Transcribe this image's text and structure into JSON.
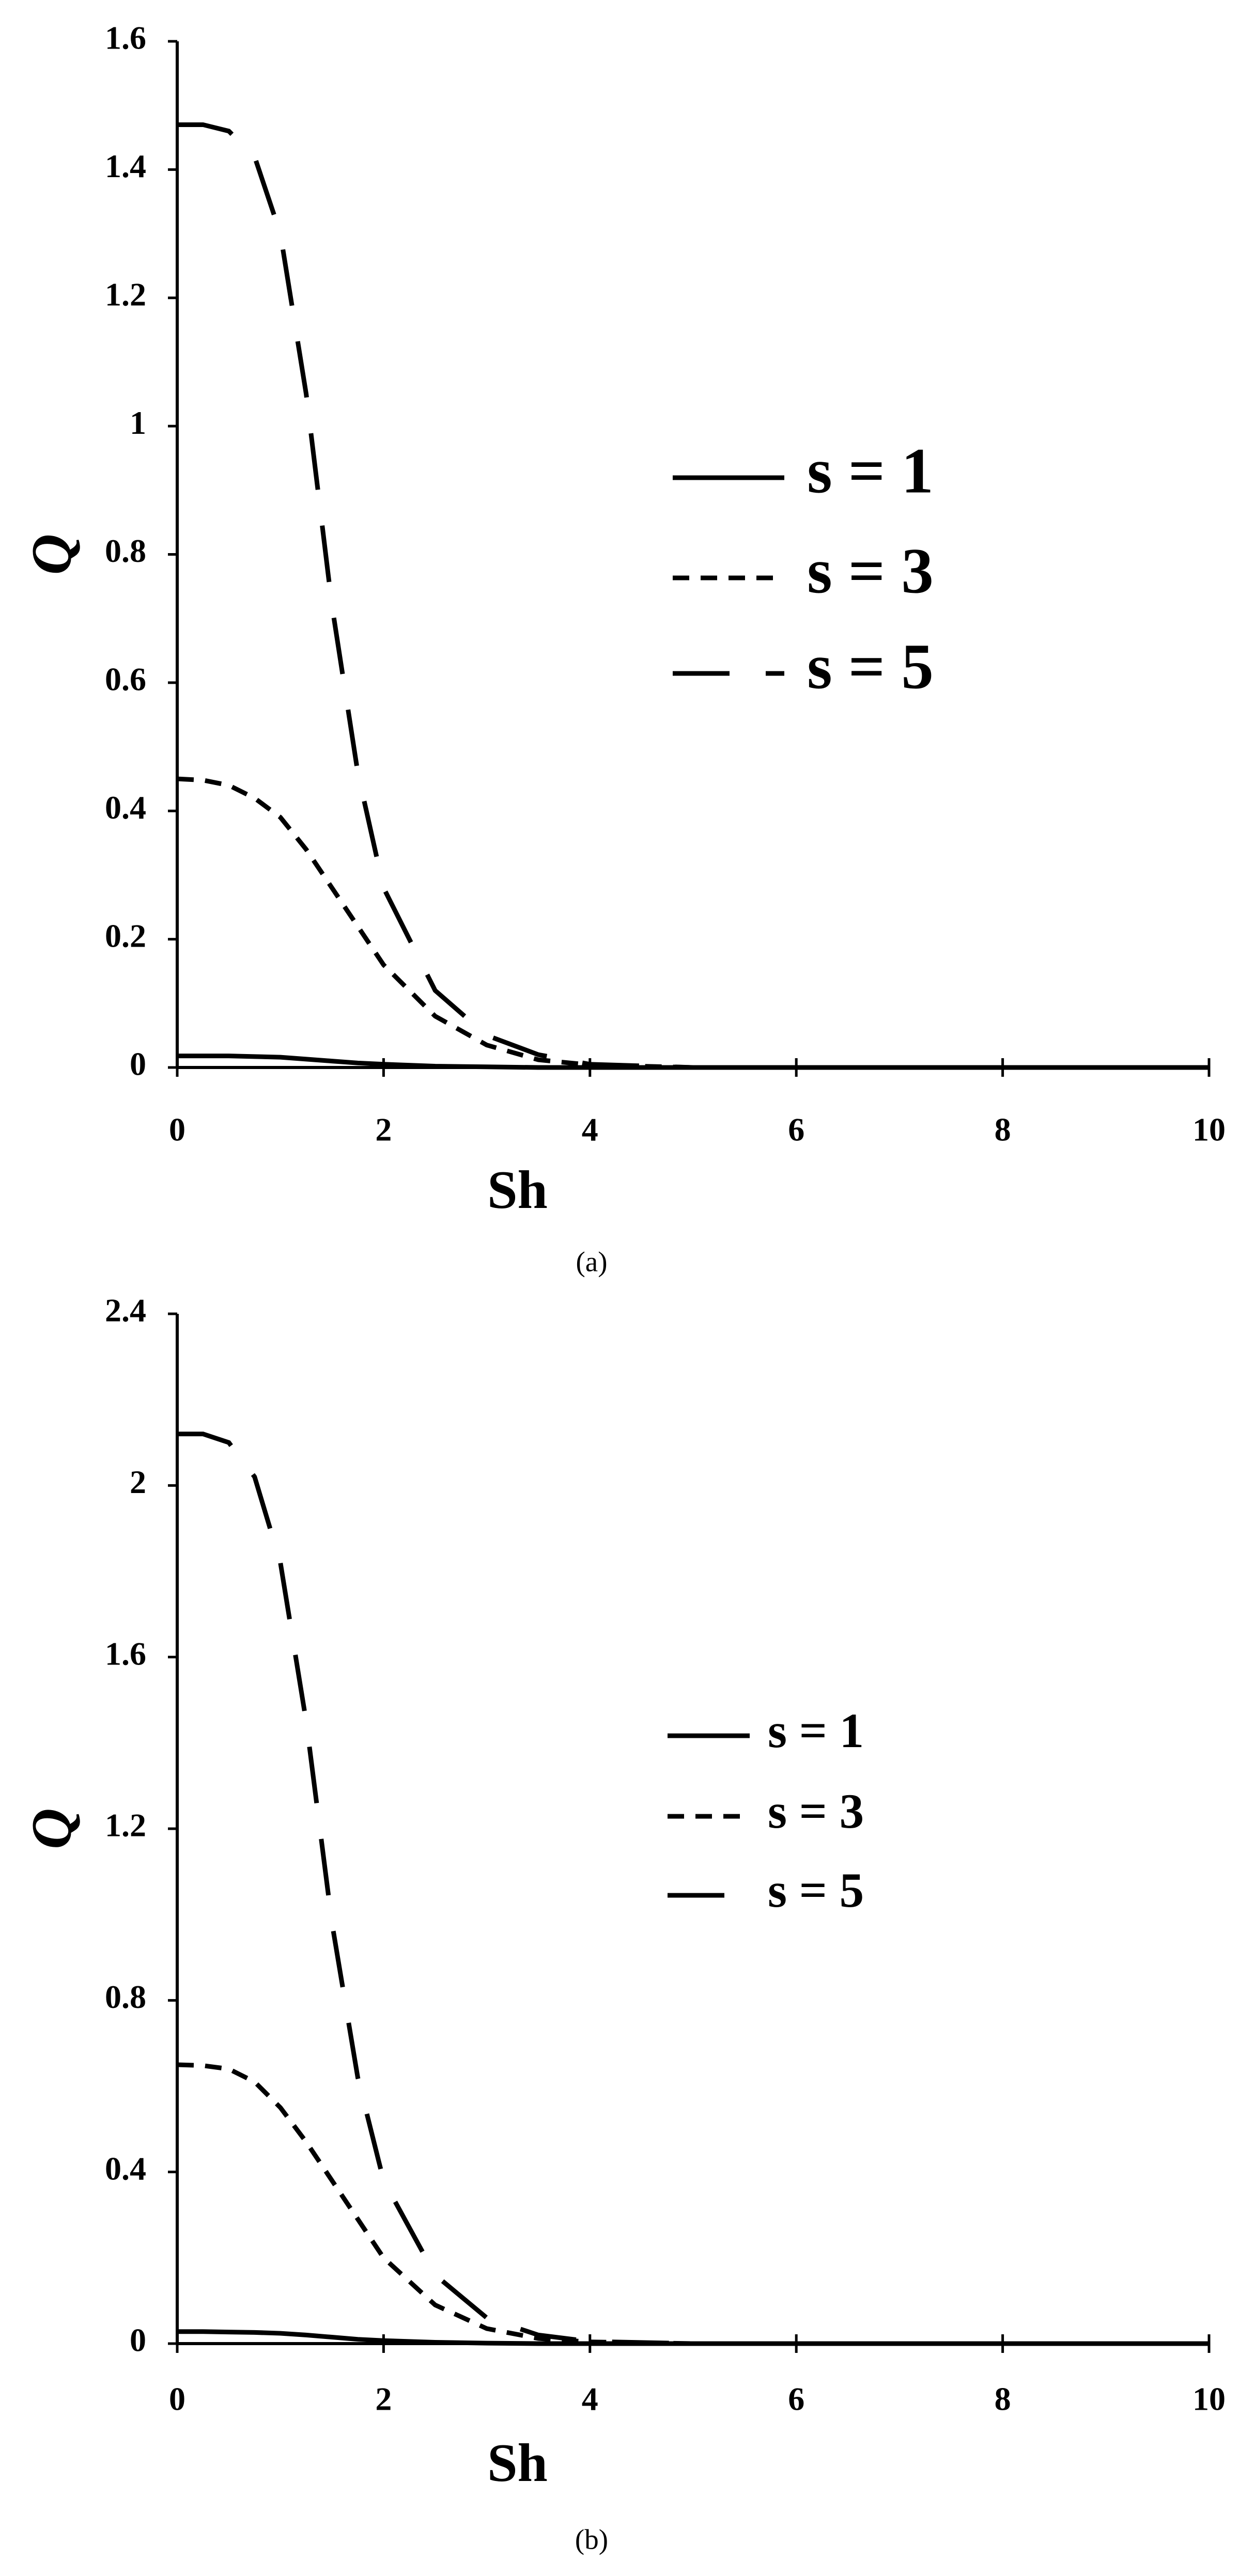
{
  "chart_data": [
    {
      "type": "line",
      "caption": "(a)",
      "xlabel": "Sh",
      "ylabel": "Q",
      "x": [
        0,
        0.25,
        0.5,
        0.75,
        1,
        1.25,
        1.5,
        1.75,
        2,
        2.5,
        3,
        3.5,
        4,
        5,
        6,
        7,
        8,
        9,
        10
      ],
      "xlim": [
        0,
        10
      ],
      "xticks": [
        0,
        2,
        4,
        6,
        8,
        10
      ],
      "ylim": [
        0,
        1.6
      ],
      "yticks": [
        0,
        0.2,
        0.4,
        0.6,
        0.8,
        1,
        1.2,
        1.4,
        1.6
      ],
      "series": [
        {
          "name": "s = 1",
          "color": "#000000",
          "style": "solid",
          "values": [
            0.018,
            0.018,
            0.018,
            0.017,
            0.016,
            0.013,
            0.01,
            0.007,
            0.005,
            0.002,
            0.001,
            0,
            0,
            0,
            0,
            0,
            0,
            0,
            0
          ]
        },
        {
          "name": "s = 3",
          "color": "#000000",
          "style": "dotted",
          "values": [
            0.45,
            0.448,
            0.44,
            0.42,
            0.39,
            0.34,
            0.28,
            0.22,
            0.16,
            0.08,
            0.035,
            0.012,
            0.004,
            0,
            0,
            0,
            0,
            0,
            0
          ]
        },
        {
          "name": "s = 5",
          "color": "#000000",
          "style": "dashed",
          "values": [
            1.47,
            1.47,
            1.46,
            1.42,
            1.3,
            1.05,
            0.72,
            0.46,
            0.28,
            0.12,
            0.05,
            0.02,
            0.005,
            0,
            0,
            0,
            0,
            0,
            0
          ]
        }
      ]
    },
    {
      "type": "line",
      "caption": "(b)",
      "xlabel": "Sh",
      "ylabel": "Q",
      "x": [
        0,
        0.25,
        0.5,
        0.75,
        1,
        1.25,
        1.5,
        1.75,
        2,
        2.5,
        3,
        3.5,
        4,
        5,
        6,
        7,
        8,
        9,
        10
      ],
      "xlim": [
        0,
        10
      ],
      "xticks": [
        0,
        2,
        4,
        6,
        8,
        10
      ],
      "ylim": [
        0,
        2.4
      ],
      "yticks": [
        0,
        0.4,
        0.8,
        1.2,
        1.6,
        2,
        2.4
      ],
      "series": [
        {
          "name": "s = 1",
          "color": "#000000",
          "style": "solid",
          "values": [
            0.028,
            0.028,
            0.027,
            0.026,
            0.024,
            0.02,
            0.015,
            0.01,
            0.007,
            0.003,
            0.001,
            0,
            0,
            0,
            0,
            0,
            0,
            0,
            0
          ]
        },
        {
          "name": "s = 3",
          "color": "#000000",
          "style": "dotted",
          "values": [
            0.65,
            0.648,
            0.64,
            0.61,
            0.55,
            0.47,
            0.38,
            0.29,
            0.2,
            0.09,
            0.035,
            0.012,
            0.004,
            0,
            0,
            0,
            0,
            0,
            0
          ]
        },
        {
          "name": "s = 5",
          "color": "#000000",
          "style": "dashed",
          "values": [
            2.12,
            2.12,
            2.1,
            2.02,
            1.82,
            1.45,
            0.98,
            0.62,
            0.38,
            0.16,
            0.06,
            0.02,
            0.005,
            0,
            0,
            0,
            0,
            0,
            0
          ]
        }
      ]
    }
  ]
}
